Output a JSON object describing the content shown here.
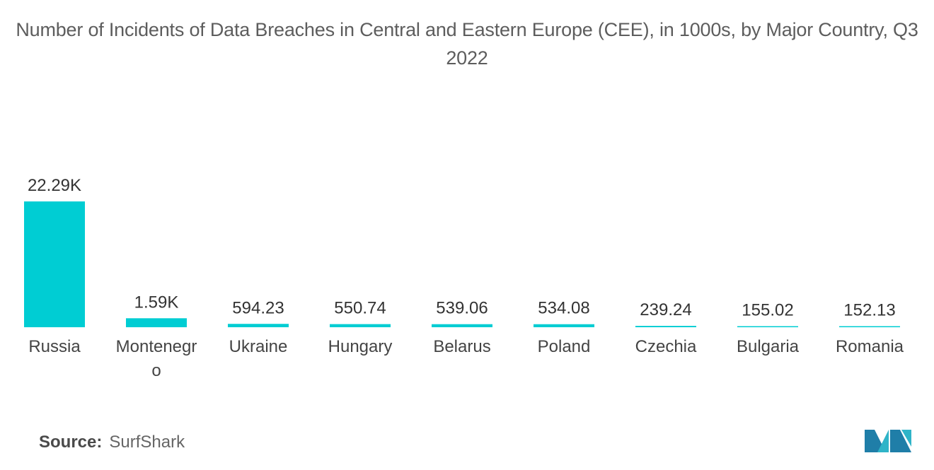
{
  "chart_data": {
    "type": "bar",
    "title": "Number of Incidents of Data Breaches in Central and Eastern Europe (CEE), in 1000s, by Major Country, Q3 2022",
    "categories": [
      "Russia",
      "Montenegro",
      "Ukraine",
      "Hungary",
      "Belarus",
      "Poland",
      "Czechia",
      "Bulgaria",
      "Romania"
    ],
    "values": [
      22290,
      1590,
      594.23,
      550.74,
      539.06,
      534.08,
      239.24,
      155.02,
      152.13
    ],
    "data_labels": [
      "22.29K",
      "1.59K",
      "594.23",
      "550.74",
      "539.06",
      "534.08",
      "239.24",
      "155.02",
      "152.13"
    ],
    "xlabel": "",
    "ylabel": "",
    "ylim": [
      0,
      22290
    ],
    "grid": false,
    "legend": "none",
    "colors": {
      "bar": "#00cdd3",
      "label": "#333333"
    }
  },
  "source": {
    "label": "Source:",
    "value": "SurfShark"
  },
  "logo": {
    "icon": "mordor-intelligence-logo",
    "colors": [
      "#1f7ea8",
      "#2fb4c8"
    ]
  }
}
